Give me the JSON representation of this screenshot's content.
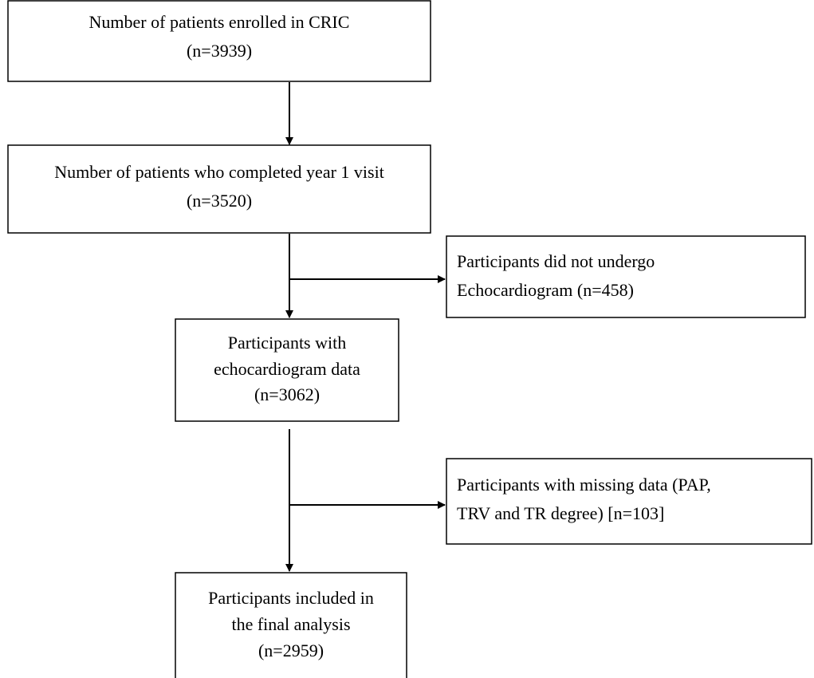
{
  "nodes": [
    {
      "lines": [
        "Number of patients enrolled in CRIC",
        "(n=3939)"
      ]
    },
    {
      "lines": [
        "Number of patients who completed year 1 visit",
        "(n=3520)"
      ]
    },
    {
      "lines": [
        "Participants did not undergo",
        "Echocardiogram (n=458)"
      ]
    },
    {
      "lines": [
        "Participants with",
        "echocardiogram data",
        "(n=3062)"
      ]
    },
    {
      "lines": [
        "Participants with missing data (PAP,",
        "TRV and TR degree) [n=103]"
      ]
    },
    {
      "lines": [
        "Participants included in",
        "the final analysis",
        "(n=2959)"
      ]
    }
  ]
}
